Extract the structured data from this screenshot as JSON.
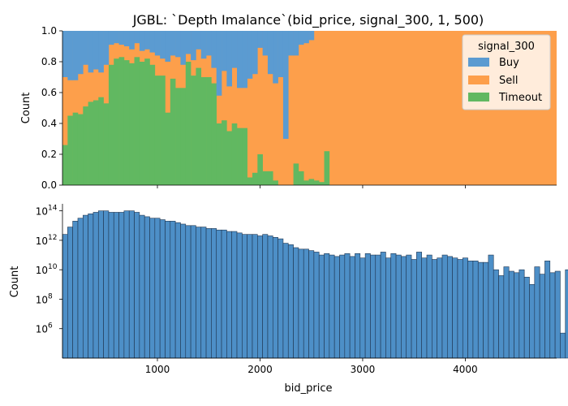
{
  "title": "JGBL: `Depth Imalance`(bid_price, signal_300, 1, 500)",
  "colors": {
    "buy": "#5b9bd1",
    "sell": "#fd9f4b",
    "timeout": "#61b861",
    "hist": "#4d8fc7",
    "edge": "#1f3550"
  },
  "chart_data": [
    {
      "type": "area",
      "subtype": "stacked-fill-histogram",
      "ylabel": "Count",
      "xlabel": "",
      "xlim": [
        75,
        4890
      ],
      "ylim": [
        0,
        1
      ],
      "yticks": [
        0.0,
        0.2,
        0.4,
        0.6,
        0.8,
        1.0
      ],
      "ytick_labels": [
        "0.0",
        "0.2",
        "0.4",
        "0.6",
        "0.8",
        "1.0"
      ],
      "xticks": [
        1000,
        2000,
        3000,
        4000
      ],
      "legend": {
        "title": "signal_300",
        "position": "top-right",
        "entries": [
          "Buy",
          "Sell",
          "Timeout"
        ]
      },
      "bin_width": 50,
      "timeout": [
        0.26,
        0.45,
        0.47,
        0.46,
        0.51,
        0.54,
        0.55,
        0.57,
        0.53,
        0.78,
        0.82,
        0.83,
        0.81,
        0.79,
        0.83,
        0.8,
        0.82,
        0.78,
        0.71,
        0.71,
        0.47,
        0.69,
        0.63,
        0.63,
        0.8,
        0.71,
        0.76,
        0.7,
        0.7,
        0.66,
        0.4,
        0.42,
        0.35,
        0.4,
        0.37,
        0.37,
        0.05,
        0.08,
        0.2,
        0.09,
        0.09,
        0.03,
        0,
        0,
        0,
        0.14,
        0.09,
        0.03,
        0.04,
        0.03,
        0.02,
        0.22
      ],
      "sell": [
        0.7,
        0.68,
        0.68,
        0.72,
        0.78,
        0.73,
        0.75,
        0.73,
        0.78,
        0.91,
        0.92,
        0.91,
        0.9,
        0.88,
        0.92,
        0.87,
        0.88,
        0.86,
        0.84,
        0.82,
        0.8,
        0.84,
        0.83,
        0.78,
        0.85,
        0.81,
        0.88,
        0.82,
        0.84,
        0.76,
        0.58,
        0.74,
        0.64,
        0.76,
        0.63,
        0.63,
        0.69,
        0.72,
        0.89,
        0.84,
        0.72,
        0.66,
        0.7,
        0.3,
        0.84,
        0.84,
        0.91,
        0.92,
        0.94,
        1,
        1,
        1
      ]
    },
    {
      "type": "bar",
      "subtype": "histogram",
      "xlabel": "bid_price",
      "ylabel": "Count",
      "yscale": "log",
      "xlim": [
        75,
        4890
      ],
      "ylim": [
        10000,
        300000000000000
      ],
      "xticks": [
        1000,
        2000,
        3000,
        4000
      ],
      "xtick_labels": [
        "1000",
        "2000",
        "3000",
        "4000"
      ],
      "yticks": [
        1000000,
        100000000,
        10000000000,
        1000000000000,
        100000000000000
      ],
      "ytick_exponents": [
        "6",
        "8",
        "10",
        "12",
        "14"
      ],
      "ytick_base": "10",
      "bin_width": 50,
      "log10_counts": [
        12.4,
        12.9,
        13.3,
        13.5,
        13.7,
        13.8,
        13.9,
        14.0,
        14.0,
        13.9,
        13.9,
        13.9,
        14.0,
        14.0,
        13.9,
        13.7,
        13.6,
        13.5,
        13.5,
        13.4,
        13.3,
        13.3,
        13.2,
        13.1,
        13.0,
        13.0,
        12.9,
        12.9,
        12.8,
        12.8,
        12.7,
        12.7,
        12.6,
        12.6,
        12.5,
        12.4,
        12.4,
        12.4,
        12.3,
        12.4,
        12.3,
        12.2,
        12.1,
        11.8,
        11.7,
        11.5,
        11.4,
        11.4,
        11.3,
        11.2,
        11.0,
        11.1,
        11.0,
        10.9,
        11.0,
        11.1,
        10.9,
        11.1,
        10.8,
        11.1,
        11.0,
        11.0,
        11.2,
        10.8,
        11.1,
        11.0,
        10.9,
        11.0,
        10.7,
        11.2,
        10.8,
        11.0,
        10.7,
        10.8,
        11.0,
        10.9,
        10.8,
        10.7,
        10.8,
        10.6,
        10.6,
        10.5,
        10.5,
        11.0,
        10.0,
        9.6,
        10.2,
        9.9,
        9.8,
        10.0,
        9.5,
        9.0,
        10.2,
        9.7,
        10.6,
        9.8,
        9.9,
        5.7,
        10.0,
        9.8,
        10.0,
        10.3,
        9.9,
        10.1,
        10.5,
        10.3,
        9.6,
        5.7,
        9.8,
        9.8,
        9.4,
        9.3,
        10.0,
        4.2
      ]
    }
  ]
}
